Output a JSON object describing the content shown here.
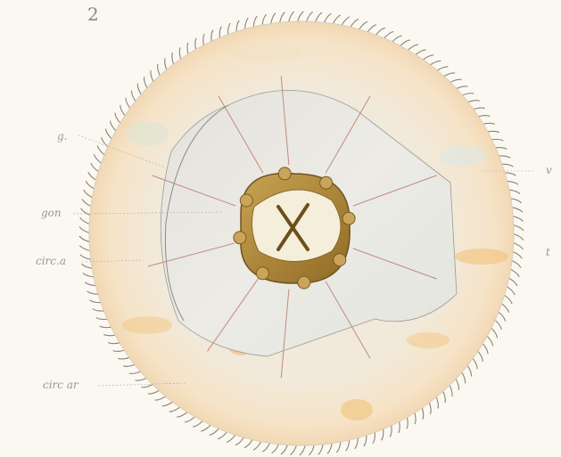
{
  "plate": {
    "figure_number": "2",
    "labels": {
      "g": "g.",
      "gon": "gon",
      "circ_a": "circ.a",
      "circ_ar": "circ ar",
      "v": "v",
      "t": "t"
    }
  },
  "colors": {
    "background": "#fbf8f1",
    "umbrella_rim": "#f3e6d2",
    "subumbrella": "#e7e6e0",
    "radial_canal": "#c98f86",
    "manubrium": "#b38e3a",
    "mouth": "#f5eedb",
    "tentacle": "#8b8478"
  },
  "icons": [
    "jellyfish-medusa-illustration"
  ]
}
